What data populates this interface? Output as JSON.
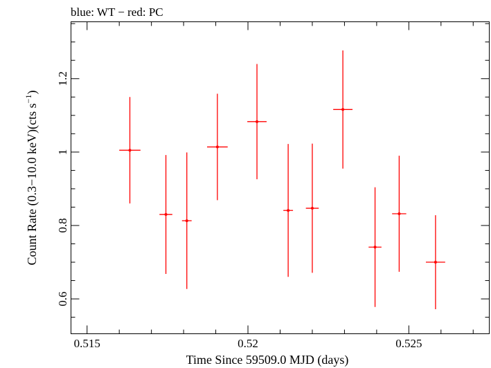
{
  "chart_data": {
    "type": "scatter",
    "title": "blue: WT − red: PC",
    "xlabel": "Time Since 59509.0 MJD (days)",
    "ylabel_main": "Count Rate (0.3−10.0 keV)(cts s",
    "ylabel_sup": "−1",
    "ylabel_end": ")",
    "xlim": [
      0.5145,
      0.5275
    ],
    "ylim": [
      0.505,
      1.355
    ],
    "x_ticks": [
      {
        "value": 0.515,
        "label": "0.515"
      },
      {
        "value": 0.52,
        "label": "0.52"
      },
      {
        "value": 0.525,
        "label": "0.525"
      }
    ],
    "x_minor_step": 0.001,
    "y_ticks": [
      {
        "value": 0.6,
        "label": "0.6"
      },
      {
        "value": 0.8,
        "label": "0.8"
      },
      {
        "value": 1.0,
        "label": "1"
      },
      {
        "value": 1.2,
        "label": "1.2"
      }
    ],
    "y_minor_step": 0.05,
    "grid": false,
    "series": [
      {
        "color": "#ff0000",
        "points": [
          {
            "x": 0.51633,
            "xerr": 0.00033,
            "y": 1.005,
            "yerr": 0.145
          },
          {
            "x": 0.51745,
            "xerr": 0.0002,
            "y": 0.83,
            "yerr": 0.162
          },
          {
            "x": 0.5181,
            "xerr": 0.00015,
            "y": 0.813,
            "yerr": 0.186
          },
          {
            "x": 0.51905,
            "xerr": 0.00032,
            "y": 1.014,
            "yerr": 0.145
          },
          {
            "x": 0.52028,
            "xerr": 0.0003,
            "y": 1.083,
            "yerr": 0.157
          },
          {
            "x": 0.52125,
            "xerr": 0.00015,
            "y": 0.841,
            "yerr": 0.181
          },
          {
            "x": 0.522,
            "xerr": 0.0002,
            "y": 0.847,
            "yerr": 0.176
          },
          {
            "x": 0.52295,
            "xerr": 0.0003,
            "y": 1.116,
            "yerr": 0.161
          },
          {
            "x": 0.52395,
            "xerr": 0.0002,
            "y": 0.741,
            "yerr": 0.163
          },
          {
            "x": 0.5247,
            "xerr": 0.00022,
            "y": 0.832,
            "yerr": 0.158
          },
          {
            "x": 0.52583,
            "xerr": 0.0003,
            "y": 0.7,
            "yerr": 0.128
          }
        ]
      }
    ]
  }
}
